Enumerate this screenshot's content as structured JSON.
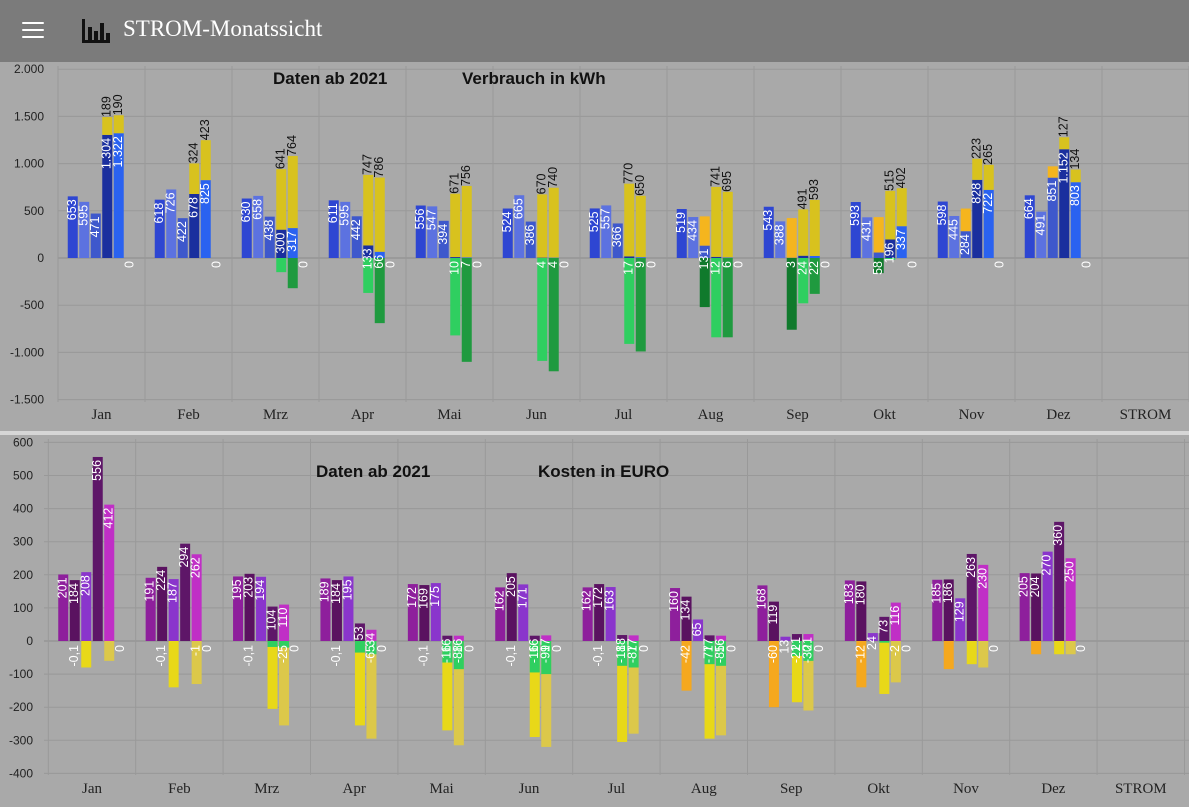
{
  "header": {
    "title": "STROM-Monatssicht",
    "menu_icon": "menu-icon",
    "app_icon": "bar-chart-icon"
  },
  "chart_data": [
    {
      "type": "bar",
      "title_left": "Daten ab 2021",
      "title_right": "Verbrauch in kWh",
      "ylim": [
        -1500,
        2000
      ],
      "yticks": [
        {
          "v": 2000,
          "label": "2.000"
        },
        {
          "v": 1500,
          "label": "1.500"
        },
        {
          "v": 1000,
          "label": "1.000"
        },
        {
          "v": 500,
          "label": "500"
        },
        {
          "v": 0,
          "label": "0"
        },
        {
          "v": -500,
          "label": "-500"
        },
        {
          "v": -1000,
          "label": "-1.000"
        },
        {
          "v": -1500,
          "label": "-1.500"
        }
      ],
      "categories": [
        "Jan",
        "Feb",
        "Mrz",
        "Apr",
        "Mai",
        "Jun",
        "Jul",
        "Aug",
        "Sep",
        "Okt",
        "Nov",
        "Dez",
        "STROM"
      ],
      "colors": {
        "bezug": [
          "#2e46d2",
          "#5c72e0",
          "#3e58cc",
          "#1a2f9e",
          "#2a62f0"
        ],
        "pv_yellow": "#d8c21e",
        "pv_orange": "#f5b51e",
        "einspeisung": [
          "#2fcf60",
          "#1f9a3f",
          "#107a2c"
        ]
      },
      "months": [
        {
          "bars": [
            {
              "p": 653,
              "l": "653"
            },
            {
              "p": 595,
              "l": "595"
            },
            {
              "p": 471,
              "l": "471"
            },
            {
              "p": 1304,
              "l": "1.304",
              "py": 189,
              "pl": "189"
            },
            {
              "p": 1322,
              "l": "1.322",
              "py": 190,
              "pl": "190"
            },
            {
              "p": 0,
              "l": "0"
            }
          ]
        },
        {
          "bars": [
            {
              "p": 618,
              "l": "618"
            },
            {
              "p": 726,
              "l": "726"
            },
            {
              "p": 422,
              "l": "422"
            },
            {
              "p": 678,
              "l": "678",
              "py": 324,
              "pl": "324"
            },
            {
              "p": 825,
              "l": "825",
              "py": 423,
              "pl": "423"
            },
            {
              "p": 0,
              "l": "0"
            }
          ]
        },
        {
          "bars": [
            {
              "p": 630,
              "l": "630"
            },
            {
              "p": 658,
              "l": "658"
            },
            {
              "p": 438,
              "l": "438"
            },
            {
              "p": 300,
              "l": "300",
              "py": 641,
              "pl": "641",
              "n": -150
            },
            {
              "p": 317,
              "l": "317",
              "py": 764,
              "pl": "764",
              "n": -320
            },
            {
              "p": 0,
              "l": "0"
            }
          ]
        },
        {
          "bars": [
            {
              "p": 611,
              "l": "611"
            },
            {
              "p": 595,
              "l": "595"
            },
            {
              "p": 442,
              "l": "442"
            },
            {
              "p": 133,
              "l": "133",
              "py": 747,
              "pl": "747",
              "n": -370
            },
            {
              "p": 66,
              "l": "66",
              "py": 786,
              "pl": "786",
              "n": -690
            },
            {
              "p": 0,
              "l": "0"
            }
          ]
        },
        {
          "bars": [
            {
              "p": 556,
              "l": "556"
            },
            {
              "p": 547,
              "l": "547"
            },
            {
              "p": 394,
              "l": "394"
            },
            {
              "p": 10,
              "l": "10",
              "py": 671,
              "pl": "671",
              "n": -820
            },
            {
              "p": 7,
              "l": "7",
              "py": 756,
              "pl": "756",
              "n": -1100
            },
            {
              "p": 0,
              "l": "0"
            }
          ]
        },
        {
          "bars": [
            {
              "p": 524,
              "l": "524"
            },
            {
              "p": 665,
              "l": "665"
            },
            {
              "p": 386,
              "l": "386"
            },
            {
              "p": 4,
              "l": "4",
              "py": 670,
              "pl": "670",
              "n": -1090
            },
            {
              "p": 4,
              "l": "4",
              "py": 740,
              "pl": "740",
              "n": -1200
            },
            {
              "p": 0,
              "l": "0"
            }
          ]
        },
        {
          "bars": [
            {
              "p": 525,
              "l": "525"
            },
            {
              "p": 557,
              "l": "557"
            },
            {
              "p": 366,
              "l": "366"
            },
            {
              "p": 17,
              "l": "17",
              "py": 770,
              "pl": "770",
              "n": -910
            },
            {
              "p": 9,
              "l": "9",
              "py": 650,
              "pl": "650",
              "n": -990
            },
            {
              "p": 0,
              "l": "0"
            }
          ]
        },
        {
          "bars": [
            {
              "p": 519,
              "l": "519"
            },
            {
              "p": 434,
              "l": "434"
            },
            {
              "p": 131,
              "l": "131",
              "po": 310,
              "n": -520
            },
            {
              "p": 12,
              "l": "12",
              "py": 741,
              "pl": "741",
              "n": -840
            },
            {
              "p": 6,
              "l": "6",
              "py": 695,
              "pl": "695",
              "n": -840
            },
            {
              "p": 0,
              "l": "0"
            }
          ]
        },
        {
          "bars": [
            {
              "p": 543,
              "l": "543"
            },
            {
              "p": 388,
              "l": "388"
            },
            {
              "p": 3,
              "l": "3",
              "po": 420,
              "n": -760
            },
            {
              "p": 24,
              "l": "24",
              "py": 491,
              "pl": "491",
              "n": -480
            },
            {
              "p": 22,
              "l": "22",
              "py": 593,
              "pl": "593",
              "n": -380
            },
            {
              "p": 0,
              "l": "0"
            }
          ]
        },
        {
          "bars": [
            {
              "p": 593,
              "l": "593"
            },
            {
              "p": 431,
              "l": "431"
            },
            {
              "p": 58,
              "l": "58",
              "po": 375,
              "n": -160
            },
            {
              "p": 196,
              "l": "196",
              "py": 515,
              "pl": "515",
              "n": -20
            },
            {
              "p": 337,
              "l": "337",
              "py": 402,
              "pl": "402"
            },
            {
              "p": 0,
              "l": "0"
            }
          ]
        },
        {
          "bars": [
            {
              "p": 598,
              "l": "598"
            },
            {
              "p": 445,
              "l": "445"
            },
            {
              "p": 284,
              "l": "284",
              "po": 240
            },
            {
              "p": 828,
              "l": "828",
              "py": 223,
              "pl": "223"
            },
            {
              "p": 722,
              "l": "722",
              "py": 265,
              "pl": "265"
            },
            {
              "p": 0,
              "l": "0"
            }
          ]
        },
        {
          "bars": [
            {
              "p": 664,
              "l": "664"
            },
            {
              "p": 491,
              "l": "491"
            },
            {
              "p": 851,
              "l": "851",
              "po": 120
            },
            {
              "p": 1152,
              "l": "1.152",
              "py": 127,
              "pl": "127"
            },
            {
              "p": 803,
              "l": "803",
              "py": 134,
              "pl": "134"
            },
            {
              "p": 0,
              "l": "0"
            }
          ]
        }
      ]
    },
    {
      "type": "bar",
      "title_left": "Daten ab 2021",
      "title_right": "Kosten in EURO",
      "ylim": [
        -400,
        600
      ],
      "yticks": [
        {
          "v": 600,
          "label": "600"
        },
        {
          "v": 500,
          "label": "500"
        },
        {
          "v": 400,
          "label": "400"
        },
        {
          "v": 300,
          "label": "300"
        },
        {
          "v": 200,
          "label": "200"
        },
        {
          "v": 100,
          "label": "100"
        },
        {
          "v": 0,
          "label": "0"
        },
        {
          "v": -100,
          "label": "-100"
        },
        {
          "v": -200,
          "label": "-200"
        },
        {
          "v": -300,
          "label": "-300"
        },
        {
          "v": -400,
          "label": "-400"
        }
      ],
      "categories": [
        "Jan",
        "Feb",
        "Mrz",
        "Apr",
        "Mai",
        "Jun",
        "Jul",
        "Aug",
        "Sep",
        "Okt",
        "Nov",
        "Dez",
        "STROM"
      ],
      "colors": {
        "kosten": [
          "#8e1f9c",
          "#5a1260",
          "#8a35cc",
          "#5e1668",
          "#c02fc6"
        ],
        "neg_yellow": "#e8d818",
        "neg_lightyellow": "#dcc84a",
        "neg_orange": "#f5a81e",
        "neg_green": "#2fcf60"
      },
      "months": [
        {
          "bars": [
            {
              "p": 201,
              "l": "201"
            },
            {
              "p": 184,
              "l": "184",
              "nl": "-0,1"
            },
            {
              "p": 208,
              "l": "208",
              "ny": -80
            },
            {
              "p": 556,
              "l": "556"
            },
            {
              "p": 412,
              "l": "412",
              "nly": -60
            },
            {
              "nl": "0"
            }
          ]
        },
        {
          "bars": [
            {
              "p": 191,
              "l": "191"
            },
            {
              "p": 224,
              "l": "224",
              "nl": "-0,1"
            },
            {
              "p": 187,
              "l": "187",
              "ny": -140
            },
            {
              "p": 294,
              "l": "294"
            },
            {
              "p": 262,
              "l": "262",
              "nly": -130,
              "nl": "-1"
            },
            {
              "nl": "0"
            }
          ]
        },
        {
          "bars": [
            {
              "p": 195,
              "l": "195"
            },
            {
              "p": 203,
              "l": "203",
              "nl": "-0,1"
            },
            {
              "p": 194,
              "l": "194"
            },
            {
              "p": 104,
              "l": "104",
              "ny": -205,
              "ng": -18
            },
            {
              "p": 110,
              "l": "110",
              "nly": -255,
              "ng2": -20,
              "nl": "-25"
            },
            {
              "nl": "0"
            }
          ]
        },
        {
          "bars": [
            {
              "p": 189,
              "l": "189"
            },
            {
              "p": 184,
              "l": "184",
              "nl": "-0,1"
            },
            {
              "p": 195,
              "l": "195"
            },
            {
              "p": 53,
              "l": "53",
              "ny": -255,
              "ng": -35
            },
            {
              "p": 34,
              "l": "34",
              "nly": -295,
              "ng2": -40,
              "nl": "-65"
            },
            {
              "nl": "0"
            }
          ]
        },
        {
          "bars": [
            {
              "p": 172,
              "l": "172"
            },
            {
              "p": 169,
              "l": "169",
              "nl": "-0,1"
            },
            {
              "p": 175,
              "l": "175"
            },
            {
              "p": 16,
              "l": "16",
              "ny": -270,
              "ng": -65,
              "nl": "-16"
            },
            {
              "p": 16,
              "l": "16",
              "nly": -315,
              "ng2": -85,
              "nl": "-88"
            },
            {
              "nl": "0"
            }
          ]
        },
        {
          "bars": [
            {
              "p": 162,
              "l": "162"
            },
            {
              "p": 205,
              "l": "205",
              "nl": "-0,1"
            },
            {
              "p": 171,
              "l": "171"
            },
            {
              "p": 16,
              "l": "16",
              "ny": -290,
              "ng": -95,
              "nl": "-16"
            },
            {
              "p": 17,
              "l": "17",
              "nly": -320,
              "ng2": -100,
              "nl": "-99"
            },
            {
              "nl": "0"
            }
          ]
        },
        {
          "bars": [
            {
              "p": 162,
              "l": "162"
            },
            {
              "p": 172,
              "l": "172",
              "nl": "-0,1"
            },
            {
              "p": 163,
              "l": "163"
            },
            {
              "p": 18,
              "l": "18",
              "ny": -305,
              "ng": -75,
              "nl": "-18"
            },
            {
              "p": 17,
              "l": "17",
              "nly": -280,
              "ng2": -80,
              "nl": "-87"
            },
            {
              "nl": "0"
            }
          ]
        },
        {
          "bars": [
            {
              "p": 160,
              "l": "160"
            },
            {
              "p": 134,
              "l": "134",
              "no": -150,
              "nl": "-42"
            },
            {
              "p": 65,
              "l": "65"
            },
            {
              "p": 17,
              "l": "17",
              "ny": -295,
              "ng": -70,
              "nl": "-77"
            },
            {
              "p": 16,
              "l": "16",
              "nly": -285,
              "ng2": -75,
              "nl": "-85"
            },
            {
              "nl": "0"
            }
          ]
        },
        {
          "bars": [
            {
              "p": 168,
              "l": "168"
            },
            {
              "p": 119,
              "l": "119",
              "no": -200,
              "nl": "-60"
            },
            {
              "p": 13,
              "l": "13"
            },
            {
              "p": 21,
              "l": "21",
              "ny": -185,
              "ng": -45,
              "nl": "-21"
            },
            {
              "p": 21,
              "l": "21",
              "nly": -210,
              "ng2": -60,
              "nl": "-30"
            },
            {
              "nl": "0"
            }
          ]
        },
        {
          "bars": [
            {
              "p": 183,
              "l": "183"
            },
            {
              "p": 180,
              "l": "180",
              "no": -140,
              "nl": "-12"
            },
            {
              "p": 24,
              "l": "24"
            },
            {
              "p": 73,
              "l": "73",
              "ny": -160,
              "ng": -5
            },
            {
              "p": 116,
              "l": "116",
              "nly": -125,
              "nl": "-2"
            },
            {
              "nl": "0"
            }
          ]
        },
        {
          "bars": [
            {
              "p": 185,
              "l": "185"
            },
            {
              "p": 186,
              "l": "186",
              "no": -85
            },
            {
              "p": 129,
              "l": "129"
            },
            {
              "p": 263,
              "l": "263",
              "ny": -70
            },
            {
              "p": 230,
              "l": "230",
              "nly": -80
            },
            {
              "nl": "0"
            }
          ]
        },
        {
          "bars": [
            {
              "p": 205,
              "l": "205"
            },
            {
              "p": 204,
              "l": "204",
              "no": -40
            },
            {
              "p": 270,
              "l": "270"
            },
            {
              "p": 360,
              "l": "360",
              "ny": -40
            },
            {
              "p": 250,
              "l": "250",
              "nly": -40
            },
            {
              "nl": "0"
            }
          ]
        }
      ]
    }
  ]
}
